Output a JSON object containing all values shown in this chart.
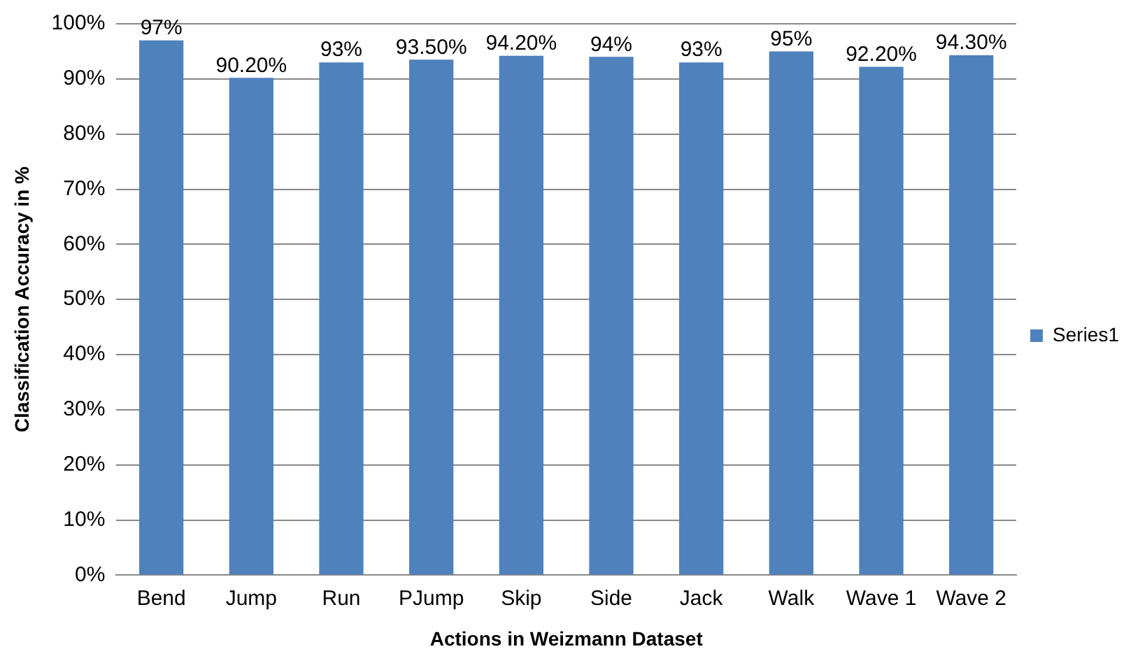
{
  "chart_data": {
    "type": "bar",
    "xlabel": "Actions in Weizmann Dataset",
    "ylabel": "Classification Accuracy in %",
    "categories": [
      "Bend",
      "Jump",
      "Run",
      "PJump",
      "Skip",
      "Side",
      "Jack",
      "Walk",
      "Wave 1",
      "Wave 2"
    ],
    "series": [
      {
        "name": "Series1",
        "color": "#4f81bd",
        "values": [
          97,
          90.2,
          93,
          93.5,
          94.2,
          94,
          93,
          95,
          92.2,
          94.3
        ],
        "value_labels": [
          "97%",
          "90.20%",
          "93%",
          "93.50%",
          "94.20%",
          "94%",
          "93%",
          "95%",
          "92.20%",
          "94.30%"
        ]
      }
    ],
    "ylim": [
      0,
      100
    ],
    "yticks": [
      {
        "value": 0,
        "label": "0%"
      },
      {
        "value": 10,
        "label": "10%"
      },
      {
        "value": 20,
        "label": "20%"
      },
      {
        "value": 30,
        "label": "30%"
      },
      {
        "value": 40,
        "label": "40%"
      },
      {
        "value": 50,
        "label": "50%"
      },
      {
        "value": 60,
        "label": "60%"
      },
      {
        "value": 70,
        "label": "70%"
      },
      {
        "value": 80,
        "label": "80%"
      },
      {
        "value": 90,
        "label": "90%"
      },
      {
        "value": 100,
        "label": "100%"
      }
    ],
    "grid": "y",
    "legend": "right"
  }
}
